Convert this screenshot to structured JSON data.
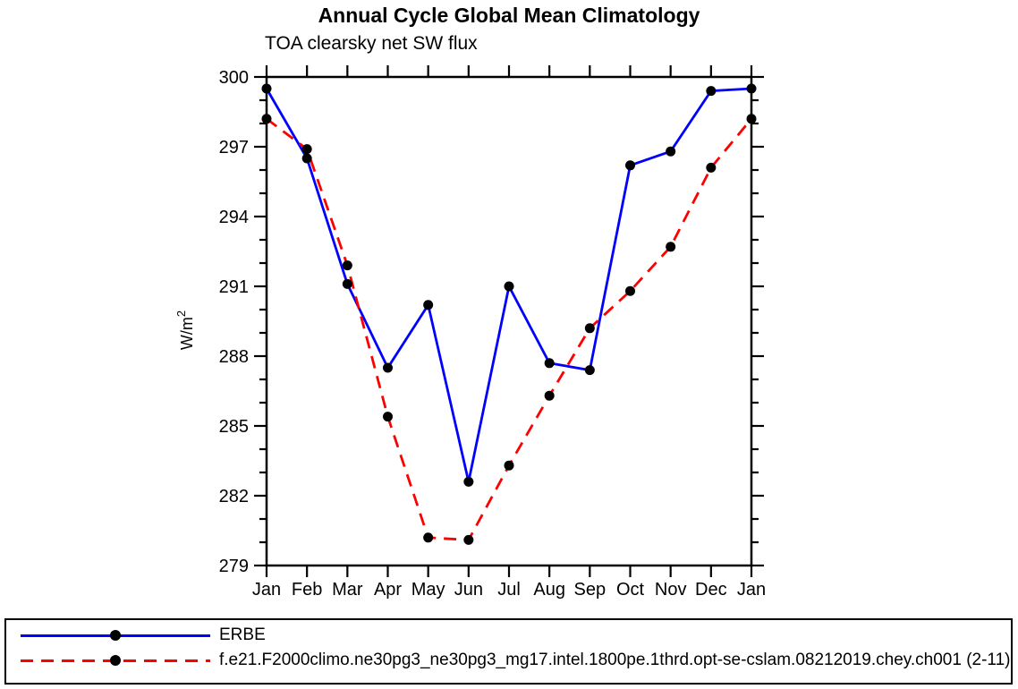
{
  "header": {
    "title": "Annual Cycle Global Mean Climatology",
    "subtitle": "TOA clearsky net SW flux"
  },
  "chart_data": {
    "type": "line",
    "title": "Annual Cycle Global Mean Climatology",
    "subtitle": "TOA clearsky net SW flux",
    "xlabel": "",
    "ylabel": "W/m2",
    "ylabel_parts": {
      "base": "W/m",
      "sup": "2"
    },
    "ylim": [
      279,
      300
    ],
    "ytick_major_step": 3,
    "ytick_minor_step": 1,
    "grid": false,
    "legend_position": "bottom",
    "categories": [
      "Jan",
      "Feb",
      "Mar",
      "Apr",
      "May",
      "Jun",
      "Jul",
      "Aug",
      "Sep",
      "Oct",
      "Nov",
      "Dec",
      "Jan"
    ],
    "series": [
      {
        "name": "ERBE",
        "line_style": "solid",
        "line_color": "#0000ff",
        "marker": "circle",
        "marker_color": "#000000",
        "values": [
          299.5,
          296.5,
          291.1,
          287.5,
          290.2,
          282.6,
          291.0,
          287.7,
          287.4,
          296.2,
          296.8,
          299.4,
          299.5
        ]
      },
      {
        "name": "f.e21.F2000climo.ne30pg3_ne30pg3_mg17.intel.1800pe.1thrd.opt-se-cslam.08212019.chey.ch001 (2-11)",
        "line_style": "dashed",
        "line_color": "#ff0000",
        "marker": "circle",
        "marker_color": "#000000",
        "values": [
          298.2,
          296.9,
          291.9,
          285.4,
          280.2,
          280.1,
          283.3,
          286.3,
          289.2,
          290.8,
          292.7,
          296.1,
          298.2
        ]
      }
    ],
    "colors": {
      "frame": "#000000",
      "text": "#000000",
      "background": "#ffffff"
    }
  }
}
